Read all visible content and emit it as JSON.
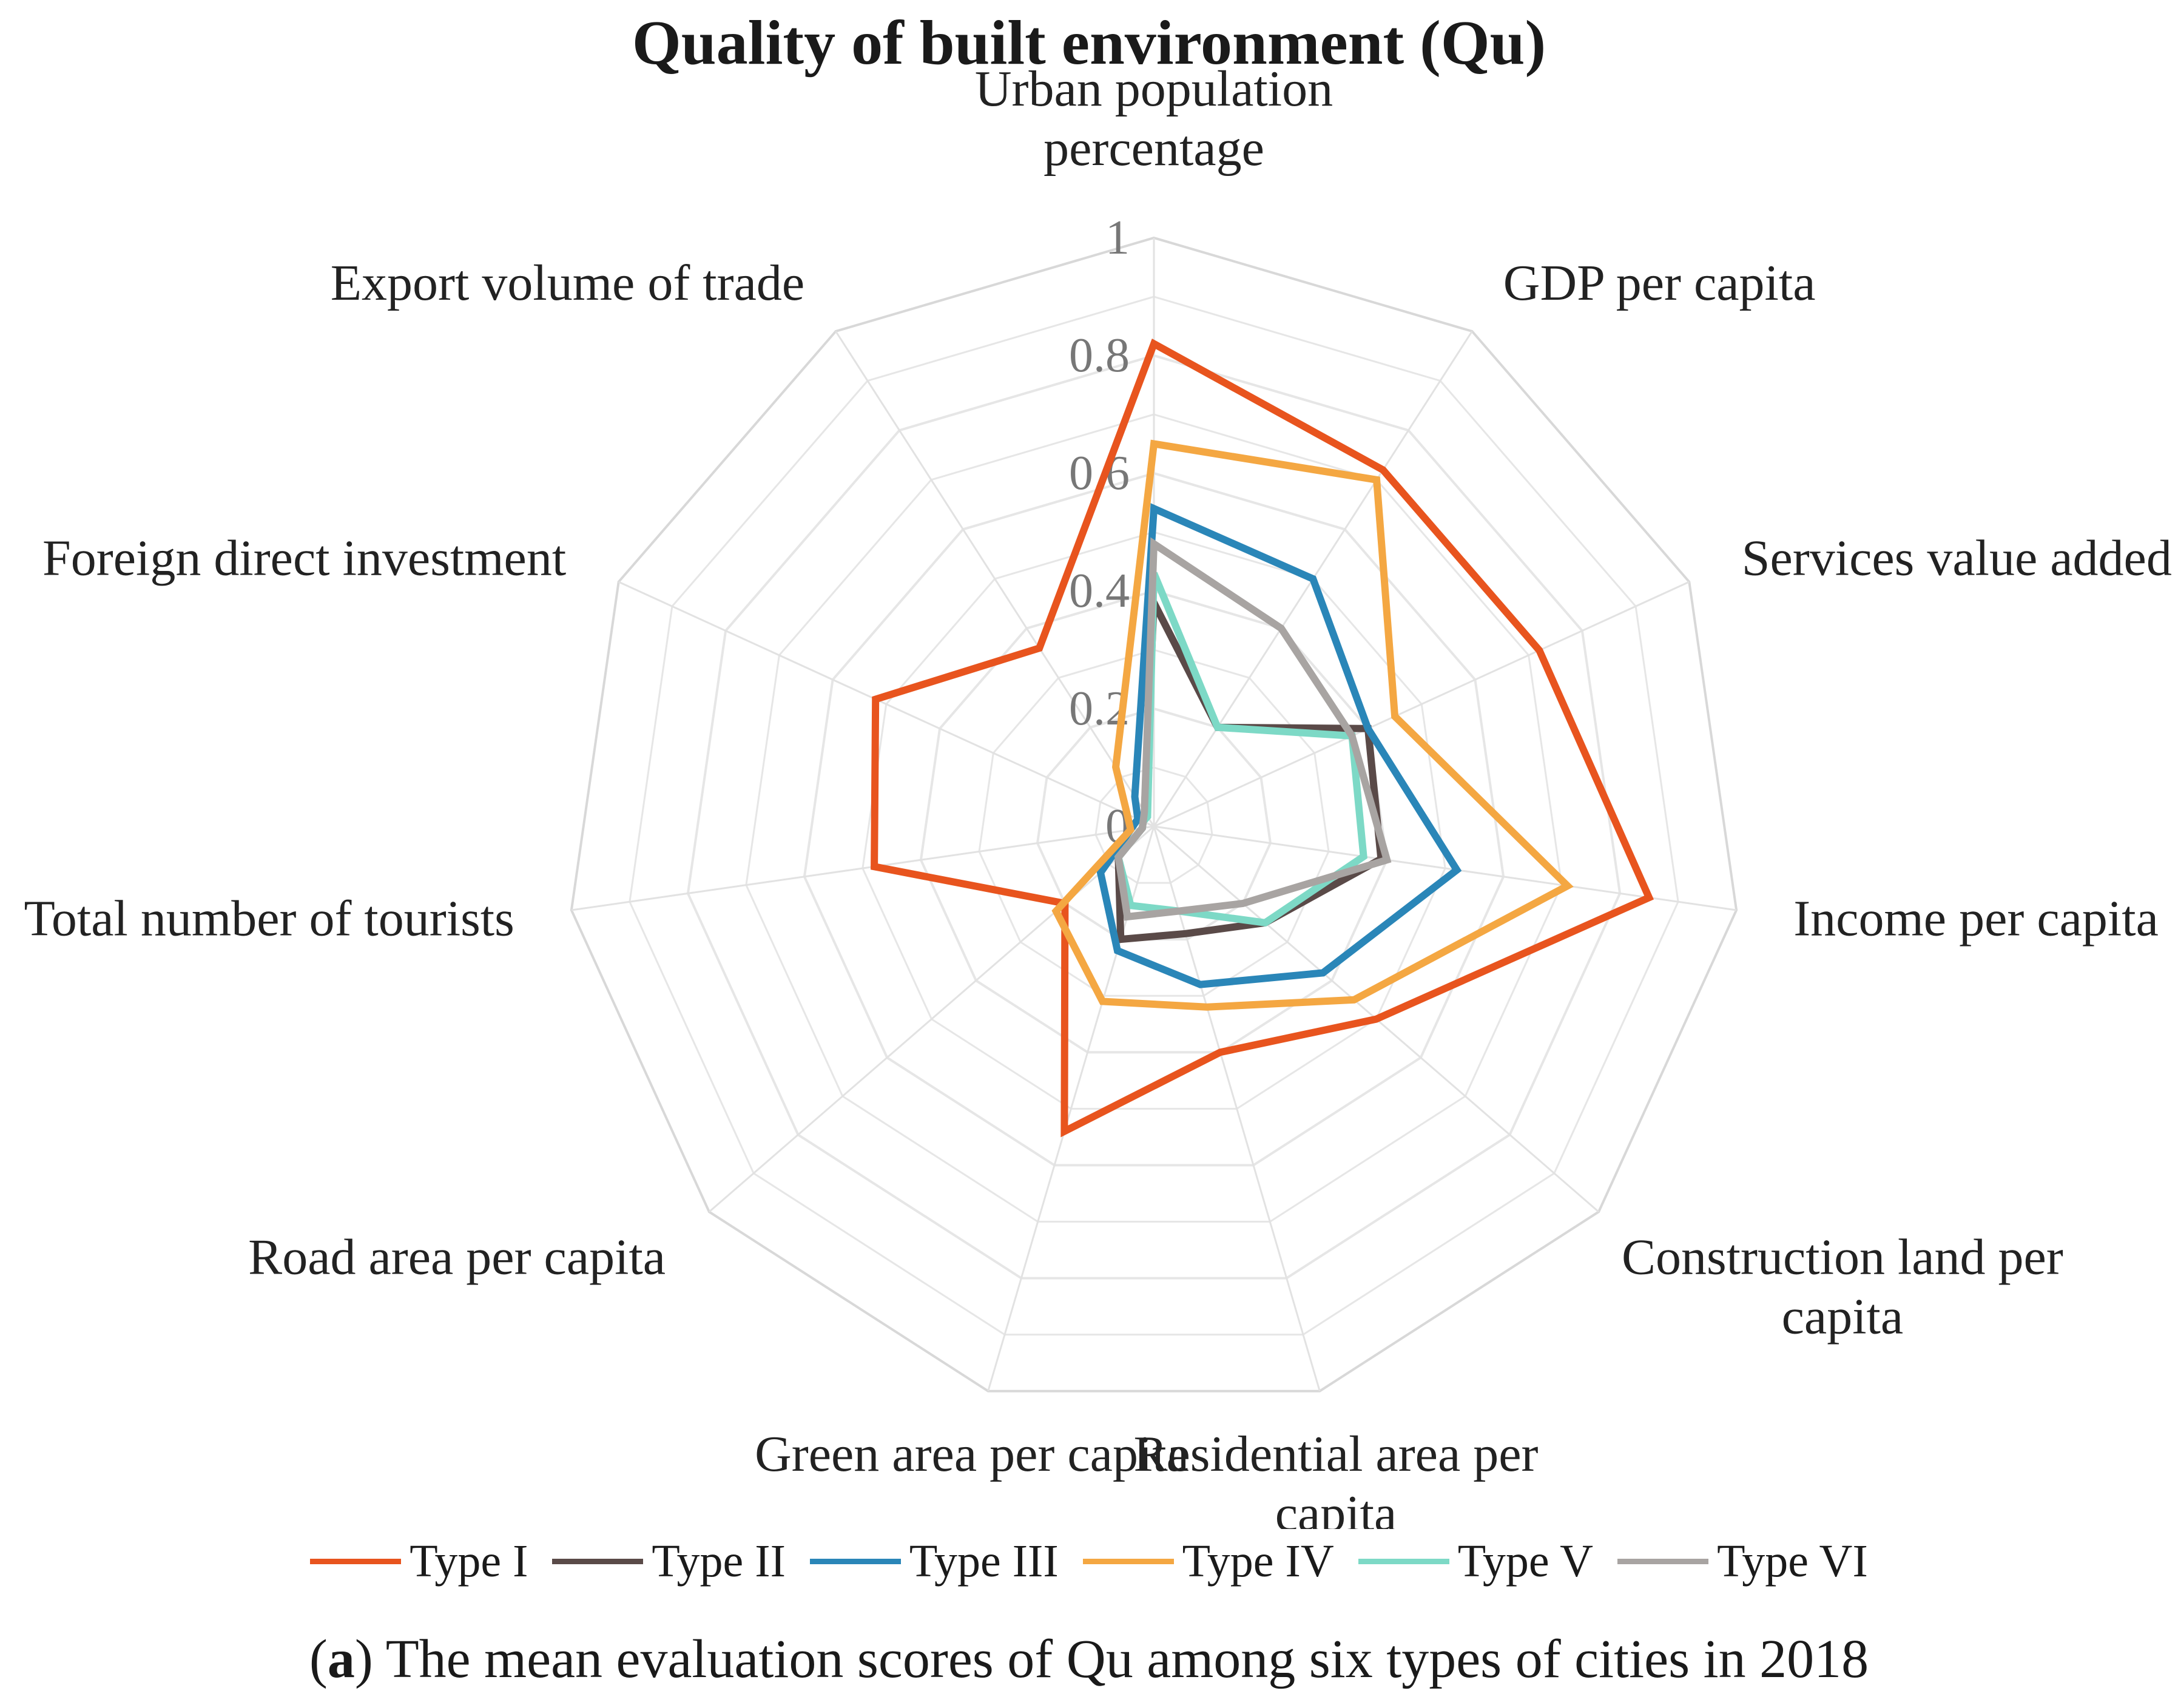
{
  "chart_data": {
    "type": "radar",
    "title": "Quality of built environment (Qu)",
    "axes": [
      [
        "Urban population",
        "percentage"
      ],
      [
        "GDP per capita"
      ],
      [
        "Services value added"
      ],
      [
        "Income per capita"
      ],
      [
        "Construction land per",
        "capita"
      ],
      [
        "Residential area per",
        "capita"
      ],
      [
        "Green area per capita"
      ],
      [
        "Road area per capita"
      ],
      [
        "Total number of tourists"
      ],
      [
        "Foreign direct investment"
      ],
      [
        "Export volume of trade"
      ]
    ],
    "ticks": [
      "0",
      "0.2",
      "0.4",
      "0.6",
      "0.8",
      "1"
    ],
    "rlim": [
      0,
      1
    ],
    "grid_levels": 10,
    "series": [
      {
        "name": "Type I",
        "color": "#E8541E",
        "values": [
          0.82,
          0.72,
          0.72,
          0.85,
          0.5,
          0.4,
          0.54,
          0.2,
          0.48,
          0.52,
          0.36
        ]
      },
      {
        "name": "Type II",
        "color": "#5A4A48",
        "values": [
          0.38,
          0.2,
          0.4,
          0.39,
          0.25,
          0.19,
          0.2,
          0.08,
          0.02,
          0.02,
          0.03
        ]
      },
      {
        "name": "Type III",
        "color": "#2A86B8",
        "values": [
          0.54,
          0.5,
          0.4,
          0.52,
          0.38,
          0.28,
          0.22,
          0.12,
          0.04,
          0.03,
          0.06
        ]
      },
      {
        "name": "Type IV",
        "color": "#F4A742",
        "values": [
          0.65,
          0.7,
          0.45,
          0.71,
          0.45,
          0.32,
          0.31,
          0.22,
          0.04,
          0.05,
          0.12
        ]
      },
      {
        "name": "Type V",
        "color": "#7DD9C6",
        "values": [
          0.43,
          0.2,
          0.37,
          0.36,
          0.25,
          0.15,
          0.14,
          0.08,
          0.02,
          0.02,
          0.02
        ]
      },
      {
        "name": "Type VI",
        "color": "#A8A4A2",
        "values": [
          0.48,
          0.4,
          0.37,
          0.4,
          0.2,
          0.15,
          0.16,
          0.08,
          0.02,
          0.02,
          0.03
        ]
      }
    ]
  },
  "caption": {
    "prefix_open": "(",
    "letter": "a",
    "rest": ") The mean evaluation scores of Qu among six types of cities in 2018"
  }
}
